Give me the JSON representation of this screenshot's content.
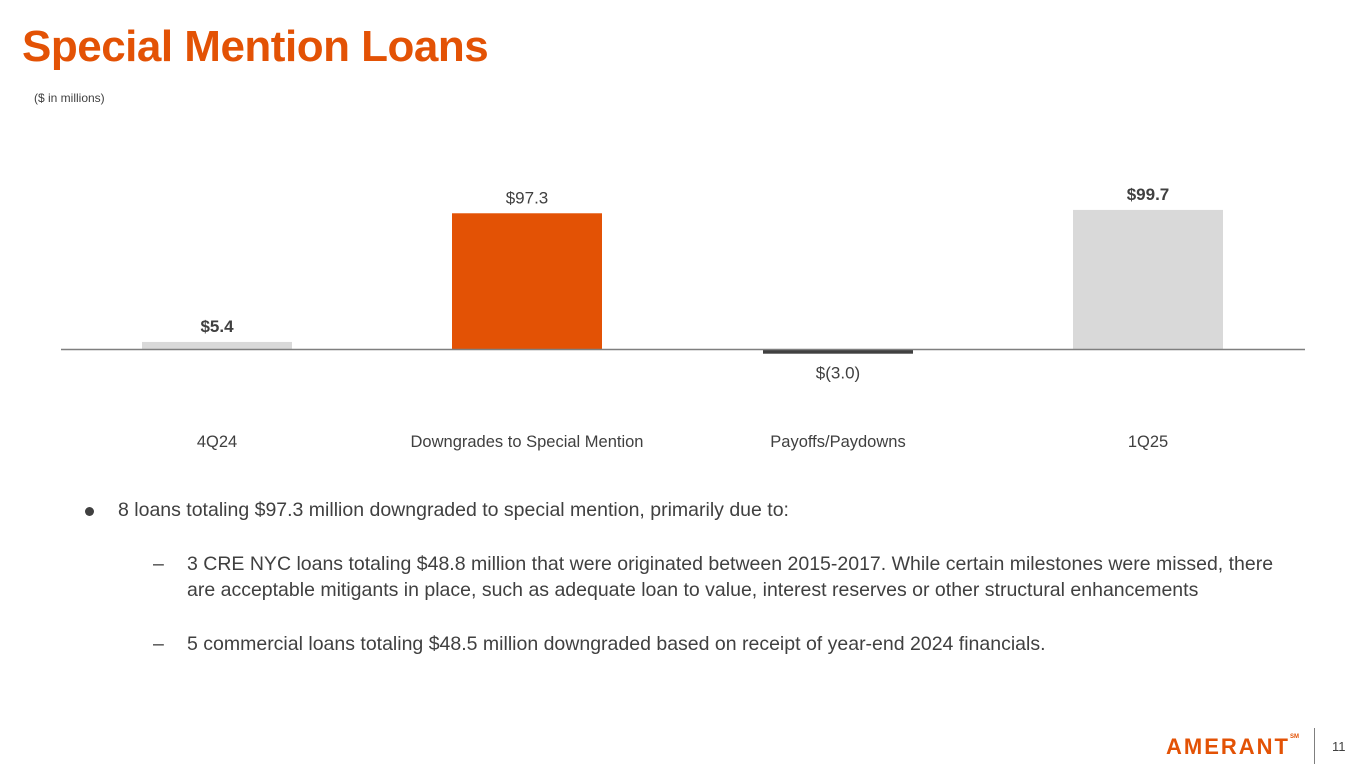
{
  "page": {
    "title": "Special Mention Loans",
    "subtitle": "($ in millions)",
    "page_number": "11"
  },
  "logo": {
    "text": "AMERANT",
    "trademark": "SM"
  },
  "colors": {
    "accent": "#e35205",
    "neutral_bar": "#d9d9d9",
    "negative_bar": "#404040",
    "text": "#404040"
  },
  "chart_data": {
    "type": "bar",
    "subtype": "waterfall",
    "categories": [
      "4Q24",
      "Downgrades to Special Mention",
      "Payoffs/Paydowns",
      "1Q25"
    ],
    "values": [
      5.4,
      97.3,
      -3.0,
      99.7
    ],
    "labels": [
      "$5.4",
      "$97.3",
      "$(3.0)",
      "$99.7"
    ],
    "bold_labels": [
      true,
      false,
      false,
      true
    ],
    "bar_colors": [
      "#d9d9d9",
      "#e35205",
      "#404040",
      "#d9d9d9"
    ],
    "ylim": [
      -15,
      120
    ],
    "grid": false,
    "legend": "none"
  },
  "bullets": {
    "main": "8 loans totaling $97.3 million downgraded to special mention, primarily due to:",
    "sub": [
      "3 CRE NYC loans totaling $48.8 million that were originated between 2015-2017. While certain milestones were missed, there are acceptable mitigants in place, such as adequate loan to value, interest reserves or other structural enhancements",
      "5 commercial loans totaling $48.5 million downgraded based on receipt of year-end 2024 financials."
    ],
    "dash": "–"
  }
}
